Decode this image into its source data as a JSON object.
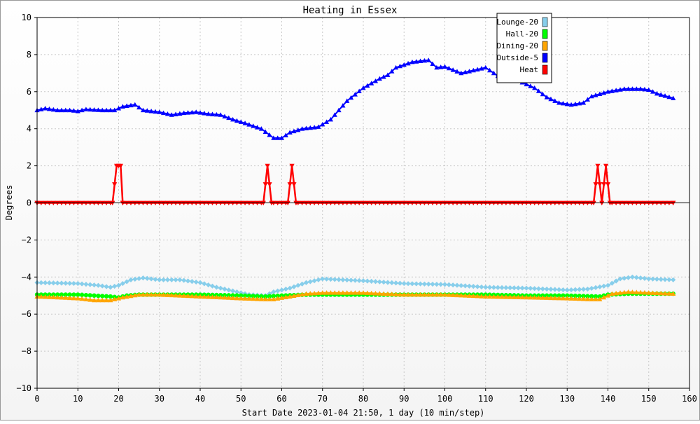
{
  "chart_data": {
    "type": "line",
    "title": "Heating in Essex",
    "xlabel": "Start Date 2023-01-04 21:50, 1 day (10 min/step)",
    "ylabel": "Degrees",
    "xlim": [
      0,
      160
    ],
    "ylim": [
      -10,
      10
    ],
    "x_ticks": [
      "0",
      "10",
      "20",
      "30",
      "40",
      "50",
      "60",
      "70",
      "80",
      "90",
      "100",
      "110",
      "120",
      "130",
      "140",
      "150",
      "160"
    ],
    "y_ticks": [
      "10",
      "8",
      "6",
      "4",
      "2",
      "0",
      "−2",
      "−4",
      "−6",
      "−8",
      "−10"
    ],
    "grid": true,
    "legend_position": "top-right",
    "series": [
      {
        "name": "Lounge-20",
        "color": "#87ceeb",
        "marker": "diamond",
        "points": [
          [
            0,
            -4.3
          ],
          [
            10,
            -4.35
          ],
          [
            15,
            -4.45
          ],
          [
            18,
            -4.55
          ],
          [
            20,
            -4.45
          ],
          [
            23,
            -4.15
          ],
          [
            26,
            -4.05
          ],
          [
            30,
            -4.15
          ],
          [
            35,
            -4.15
          ],
          [
            40,
            -4.3
          ],
          [
            44,
            -4.55
          ],
          [
            48,
            -4.75
          ],
          [
            52,
            -4.95
          ],
          [
            56,
            -5.0
          ],
          [
            58,
            -4.8
          ],
          [
            62,
            -4.6
          ],
          [
            66,
            -4.3
          ],
          [
            70,
            -4.1
          ],
          [
            80,
            -4.2
          ],
          [
            90,
            -4.35
          ],
          [
            100,
            -4.4
          ],
          [
            110,
            -4.55
          ],
          [
            120,
            -4.6
          ],
          [
            130,
            -4.7
          ],
          [
            135,
            -4.65
          ],
          [
            140,
            -4.45
          ],
          [
            143,
            -4.1
          ],
          [
            146,
            -4.0
          ],
          [
            150,
            -4.1
          ],
          [
            156,
            -4.15
          ]
        ]
      },
      {
        "name": "Hall-20",
        "color": "#00ff00",
        "marker": "circle",
        "points": [
          [
            0,
            -4.95
          ],
          [
            10,
            -4.95
          ],
          [
            18,
            -5.05
          ],
          [
            20,
            -5.1
          ],
          [
            22,
            -5.0
          ],
          [
            25,
            -4.95
          ],
          [
            30,
            -4.95
          ],
          [
            40,
            -4.95
          ],
          [
            50,
            -5.0
          ],
          [
            56,
            -5.05
          ],
          [
            60,
            -5.0
          ],
          [
            66,
            -4.95
          ],
          [
            70,
            -4.95
          ],
          [
            80,
            -4.95
          ],
          [
            90,
            -4.95
          ],
          [
            100,
            -4.95
          ],
          [
            110,
            -4.95
          ],
          [
            120,
            -5.0
          ],
          [
            130,
            -5.0
          ],
          [
            138,
            -5.05
          ],
          [
            140,
            -4.95
          ],
          [
            145,
            -4.9
          ],
          [
            150,
            -4.9
          ],
          [
            156,
            -4.9
          ]
        ]
      },
      {
        "name": "Dining-20",
        "color": "#ffa500",
        "marker": "triangle-up",
        "points": [
          [
            0,
            -5.05
          ],
          [
            10,
            -5.15
          ],
          [
            14,
            -5.25
          ],
          [
            18,
            -5.25
          ],
          [
            21,
            -5.1
          ],
          [
            25,
            -4.95
          ],
          [
            30,
            -4.95
          ],
          [
            40,
            -5.05
          ],
          [
            50,
            -5.15
          ],
          [
            56,
            -5.2
          ],
          [
            58,
            -5.2
          ],
          [
            62,
            -5.05
          ],
          [
            66,
            -4.9
          ],
          [
            70,
            -4.85
          ],
          [
            80,
            -4.85
          ],
          [
            90,
            -4.95
          ],
          [
            100,
            -4.95
          ],
          [
            110,
            -5.05
          ],
          [
            120,
            -5.1
          ],
          [
            130,
            -5.15
          ],
          [
            136,
            -5.2
          ],
          [
            138,
            -5.2
          ],
          [
            141,
            -4.9
          ],
          [
            145,
            -4.8
          ],
          [
            150,
            -4.85
          ],
          [
            156,
            -4.9
          ]
        ]
      },
      {
        "name": "Outside-5",
        "color": "#0000ff",
        "marker": "triangle-up",
        "points": [
          [
            0,
            5.0
          ],
          [
            2,
            5.1
          ],
          [
            5,
            5.0
          ],
          [
            8,
            5.0
          ],
          [
            10,
            4.95
          ],
          [
            12,
            5.05
          ],
          [
            16,
            5.0
          ],
          [
            19,
            5.0
          ],
          [
            21,
            5.2
          ],
          [
            24,
            5.3
          ],
          [
            26,
            5.0
          ],
          [
            30,
            4.9
          ],
          [
            33,
            4.75
          ],
          [
            36,
            4.85
          ],
          [
            39,
            4.9
          ],
          [
            42,
            4.8
          ],
          [
            45,
            4.75
          ],
          [
            48,
            4.5
          ],
          [
            51,
            4.3
          ],
          [
            55,
            4.0
          ],
          [
            58,
            3.5
          ],
          [
            60,
            3.5
          ],
          [
            62,
            3.8
          ],
          [
            65,
            4.0
          ],
          [
            69,
            4.1
          ],
          [
            72,
            4.5
          ],
          [
            76,
            5.5
          ],
          [
            80,
            6.2
          ],
          [
            84,
            6.7
          ],
          [
            86,
            6.9
          ],
          [
            88,
            7.3
          ],
          [
            92,
            7.6
          ],
          [
            96,
            7.7
          ],
          [
            98,
            7.3
          ],
          [
            100,
            7.35
          ],
          [
            104,
            7.0
          ],
          [
            106,
            7.1
          ],
          [
            110,
            7.3
          ],
          [
            113,
            6.85
          ],
          [
            118,
            6.6
          ],
          [
            122,
            6.2
          ],
          [
            125,
            5.7
          ],
          [
            128,
            5.4
          ],
          [
            131,
            5.3
          ],
          [
            134,
            5.4
          ],
          [
            136,
            5.75
          ],
          [
            140,
            6.0
          ],
          [
            144,
            6.15
          ],
          [
            148,
            6.15
          ],
          [
            150,
            6.1
          ],
          [
            152,
            5.9
          ],
          [
            156,
            5.65
          ]
        ]
      },
      {
        "name": "Heat",
        "color": "#ff0000",
        "marker": "triangle-down",
        "points": [
          [
            0,
            0
          ],
          [
            18.5,
            0
          ],
          [
            19.5,
            2
          ],
          [
            20.5,
            2
          ],
          [
            21,
            0
          ],
          [
            55.5,
            0
          ],
          [
            56.5,
            2
          ],
          [
            57.5,
            0
          ],
          [
            61.5,
            0
          ],
          [
            62.5,
            2
          ],
          [
            63.5,
            0
          ],
          [
            136.5,
            0
          ],
          [
            137.5,
            2
          ],
          [
            138.5,
            0
          ],
          [
            139.5,
            2
          ],
          [
            140.5,
            0
          ],
          [
            156,
            0
          ]
        ]
      }
    ]
  }
}
